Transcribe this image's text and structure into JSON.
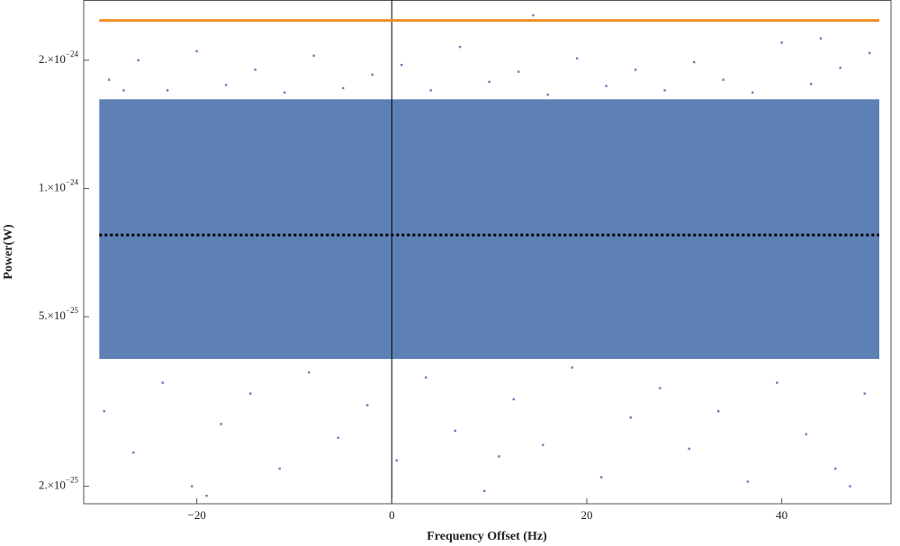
{
  "chart_data": {
    "type": "scatter",
    "x_label": "Frequency Offset (Hz)",
    "y_label": "Power(W)",
    "log_y": true,
    "xlim": [
      -31.6,
      51.2
    ],
    "xticks": [
      {
        "value": -20,
        "label": "−20"
      },
      0,
      20,
      40
    ],
    "ylim": [
      1.82e-25,
      2.77e-24
    ],
    "yticks": [
      {
        "value": 2e-25,
        "label": "2.×10",
        "exponent": "−25"
      },
      {
        "value": 5e-25,
        "label": "5.×10",
        "exponent": "−25"
      },
      {
        "value": 1e-24,
        "label": "1.×10",
        "exponent": "−24"
      },
      {
        "value": 2e-24,
        "label": "2.×10",
        "exponent": "−24"
      }
    ],
    "band": {
      "color": "#5e81b5",
      "x": [
        -30,
        50
      ],
      "lower": [
        3.98e-25,
        3.98e-25
      ],
      "upper": [
        1.62e-24,
        1.62e-24
      ]
    },
    "series": [
      {
        "color": "#5e81b5",
        "x": [
          -29,
          -26,
          -23,
          -20,
          -17,
          -14,
          -11,
          -8,
          -5,
          -2,
          1,
          4,
          7,
          10,
          13,
          16,
          19,
          22,
          25,
          28,
          31,
          34,
          37,
          40,
          43,
          46,
          49,
          -27.5,
          14.5,
          44,
          -29.5,
          -26.5,
          -23.5,
          -20.5,
          -17.5,
          -14.5,
          -11.5,
          -8.5,
          -5.5,
          -2.5,
          0.5,
          3.5,
          6.5,
          9.5,
          12.5,
          15.5,
          18.5,
          21.5,
          24.5,
          27.5,
          30.5,
          33.5,
          36.5,
          39.5,
          42.5,
          45.5,
          48.5,
          -19,
          11,
          47
        ],
        "values": [
          1.8e-24,
          2e-24,
          1.7e-24,
          2.1e-24,
          1.75e-24,
          1.9e-24,
          1.68e-24,
          2.05e-24,
          1.72e-24,
          1.85e-24,
          1.95e-24,
          1.7e-24,
          2.15e-24,
          1.78e-24,
          1.88e-24,
          1.66e-24,
          2.02e-24,
          1.74e-24,
          1.9e-24,
          1.7e-24,
          1.98e-24,
          1.8e-24,
          1.68e-24,
          2.2e-24,
          1.76e-24,
          1.92e-24,
          2.08e-24,
          1.7e-24,
          2.55e-24,
          2.25e-24,
          3e-25,
          2.4e-25,
          3.5e-25,
          2e-25,
          2.8e-25,
          3.3e-25,
          2.2e-25,
          3.7e-25,
          2.6e-25,
          3.1e-25,
          2.3e-25,
          3.6e-25,
          2.7e-25,
          1.95e-25,
          3.2e-25,
          2.5e-25,
          3.8e-25,
          2.1e-25,
          2.9e-25,
          3.4e-25,
          2.45e-25,
          3e-25,
          2.05e-25,
          3.5e-25,
          2.65e-25,
          2.2e-25,
          3.3e-25,
          1.9e-25,
          2.35e-25,
          2e-25
        ]
      }
    ],
    "hlines": [
      {
        "value": 2.48e-24,
        "color": "#ee8a1f",
        "style": "solid"
      },
      {
        "value": 7.78e-25,
        "color": "#000000",
        "style": "dotted"
      }
    ]
  }
}
